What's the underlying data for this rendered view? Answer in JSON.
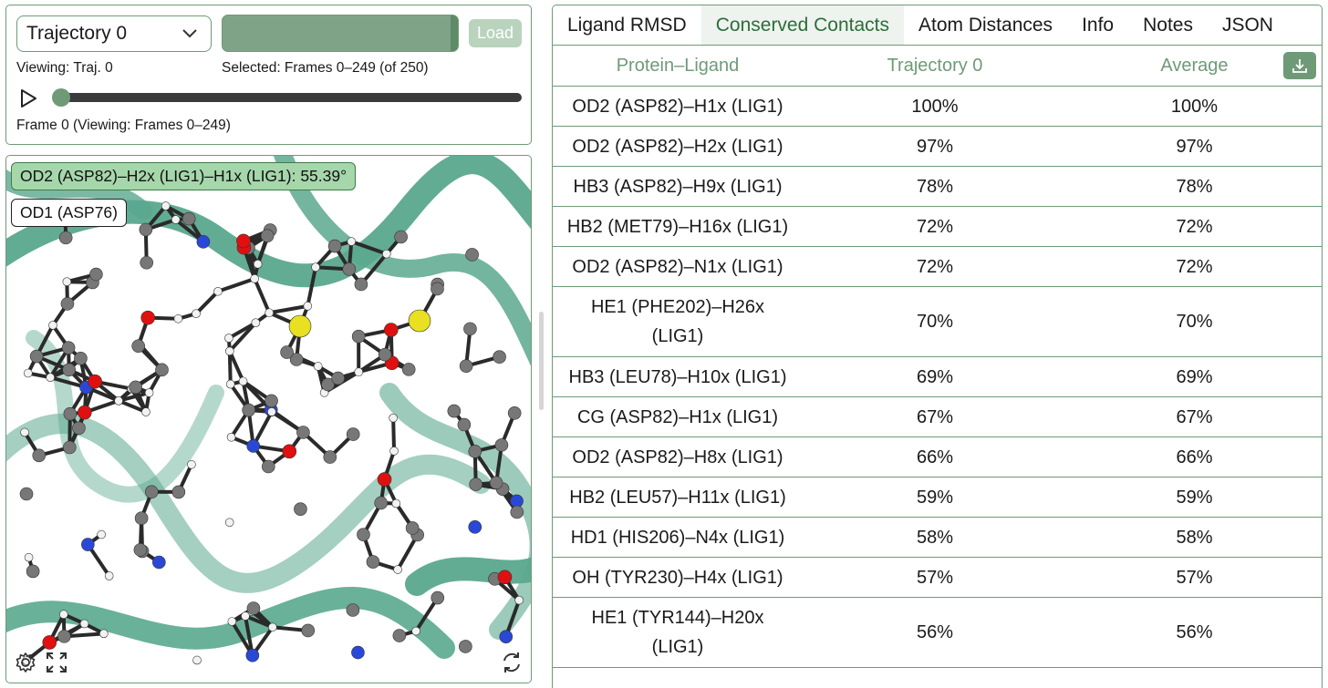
{
  "controls": {
    "trajectory_select": "Trajectory 0",
    "load_label": "Load",
    "viewing": "Viewing: Traj. 0",
    "selected": "Selected: Frames 0–249 (of 250)",
    "frame_status": "Frame 0 (Viewing: Frames 0–249)",
    "frame_slider_position": 0,
    "frame_count": 250
  },
  "viewer": {
    "angle_label": "OD2 (ASP82)–H2x (LIG1)–H1x (LIG1): 55.39°",
    "atom_label": "OD1 (ASP76)",
    "icons": [
      "settings-icon",
      "fullscreen-icon",
      "reset-view-icon"
    ]
  },
  "tabs": [
    {
      "label": "Ligand RMSD",
      "active": false
    },
    {
      "label": "Conserved Contacts",
      "active": true
    },
    {
      "label": "Atom Distances",
      "active": false
    },
    {
      "label": "Info",
      "active": false
    },
    {
      "label": "Notes",
      "active": false
    },
    {
      "label": "JSON",
      "active": false
    }
  ],
  "table": {
    "headers": [
      "Protein–Ligand",
      "Trajectory 0",
      "Average"
    ],
    "rows": [
      {
        "contact": "OD2 (ASP82)–H1x (LIG1)",
        "traj0": "100%",
        "avg": "100%"
      },
      {
        "contact": "OD2 (ASP82)–H2x (LIG1)",
        "traj0": "97%",
        "avg": "97%"
      },
      {
        "contact": "HB3 (ASP82)–H9x (LIG1)",
        "traj0": "78%",
        "avg": "78%"
      },
      {
        "contact": "HB2 (MET79)–H16x (LIG1)",
        "traj0": "72%",
        "avg": "72%"
      },
      {
        "contact": "OD2 (ASP82)–N1x (LIG1)",
        "traj0": "72%",
        "avg": "72%"
      },
      {
        "contact": "HE1 (PHE202)–H26x (LIG1)",
        "traj0": "70%",
        "avg": "70%"
      },
      {
        "contact": "HB3 (LEU78)–H10x (LIG1)",
        "traj0": "69%",
        "avg": "69%"
      },
      {
        "contact": "CG (ASP82)–H1x (LIG1)",
        "traj0": "67%",
        "avg": "67%"
      },
      {
        "contact": "OD2 (ASP82)–H8x (LIG1)",
        "traj0": "66%",
        "avg": "66%"
      },
      {
        "contact": "HB2 (LEU57)–H11x (LIG1)",
        "traj0": "59%",
        "avg": "59%"
      },
      {
        "contact": "HD1 (HIS206)–N4x (LIG1)",
        "traj0": "58%",
        "avg": "58%"
      },
      {
        "contact": "OH (TYR230)–H4x (LIG1)",
        "traj0": "57%",
        "avg": "57%"
      },
      {
        "contact": "HE1 (TYR144)–H20x (LIG1)",
        "traj0": "56%",
        "avg": "56%"
      }
    ]
  },
  "colors": {
    "accent": "#6f9a78",
    "active_tab_text": "#2c6e3a",
    "ribbon": "#5aa88e",
    "carbon": "#777777",
    "oxygen": "#e01010",
    "nitrogen": "#2a48d8",
    "sulfur": "#e8e020",
    "hydrogen": "#f2f2f2"
  }
}
